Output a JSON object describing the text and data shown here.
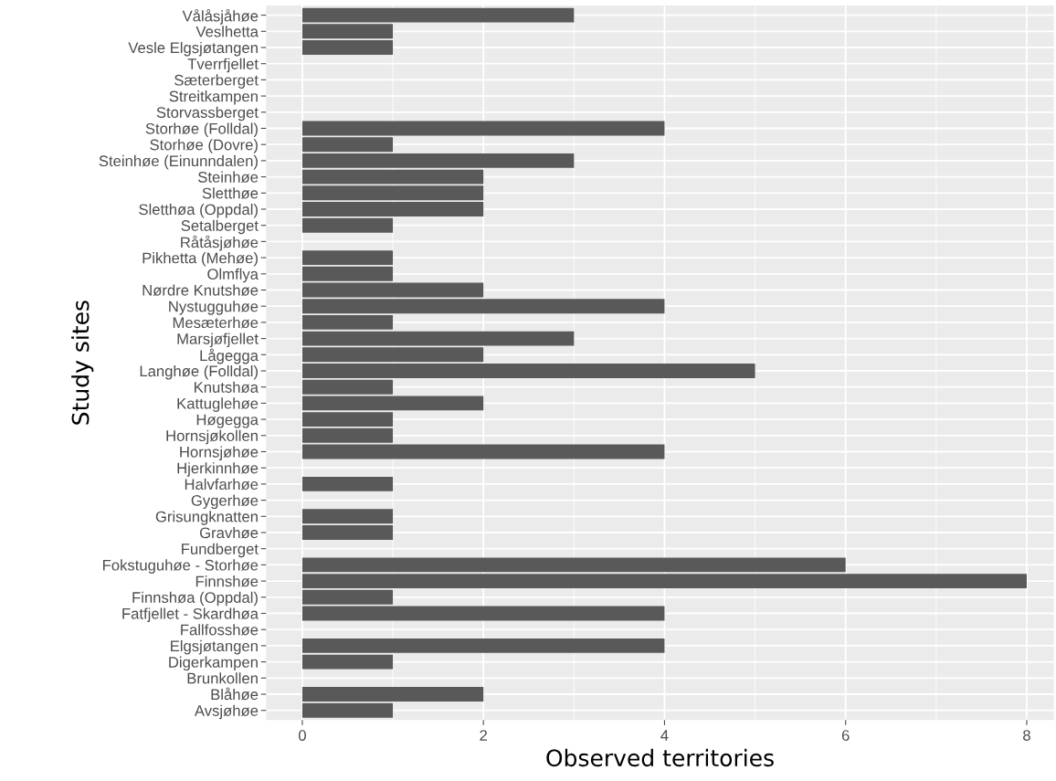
{
  "chart_data": {
    "type": "bar",
    "orientation": "horizontal",
    "xlabel": "Observed territories",
    "ylabel": "Study sites",
    "categories": [
      "Vålåsjåhøe",
      "Veslhetta",
      "Vesle Elgsjøtangen",
      "Tverrfjellet",
      "Sæterberget",
      "Streitkampen",
      "Storvassberget",
      "Storhøe (Folldal)",
      "Storhøe (Dovre)",
      "Steinhøe (Einunndalen)",
      "Steinhøe",
      "Sletthøe",
      "Sletthøa (Oppdal)",
      "Setalberget",
      "Råtåsjøhøe",
      "Pikhetta (Mehøe)",
      "Olmflya",
      "Nørdre Knutshøe",
      "Nystugguhøe",
      "Mesæterhøe",
      "Marsjøfjellet",
      "Lågegga",
      "Langhøe (Folldal)",
      "Knutshøa",
      "Kattuglehøe",
      "Høgegga",
      "Hornsjøkollen",
      "Hornsjøhøe",
      "Hjerkinnhøe",
      "Halvfarhøe",
      "Gygerhøe",
      "Grisungknatten",
      "Gravhøe",
      "Fundberget",
      "Fokstuguhøe - Storhøe",
      "Finnshøe",
      "Finnshøa (Oppdal)",
      "Fatfjellet - Skardhøa",
      "Fallfosshøe",
      "Elgsjøtangen",
      "Digerkampen",
      "Brunkollen",
      "Blåhøe",
      "Avsjøhøe"
    ],
    "values": [
      3,
      1,
      1,
      0,
      0,
      0,
      0,
      4,
      1,
      3,
      2,
      2,
      2,
      1,
      0,
      1,
      1,
      2,
      4,
      1,
      3,
      2,
      5,
      1,
      2,
      1,
      1,
      4,
      0,
      1,
      0,
      1,
      1,
      0,
      6,
      8,
      1,
      4,
      0,
      4,
      1,
      0,
      2,
      1
    ],
    "color": "#595959",
    "xlim": [
      -0.4,
      8.3
    ],
    "xticks": [
      0,
      2,
      4,
      6,
      8
    ],
    "grid": true
  }
}
